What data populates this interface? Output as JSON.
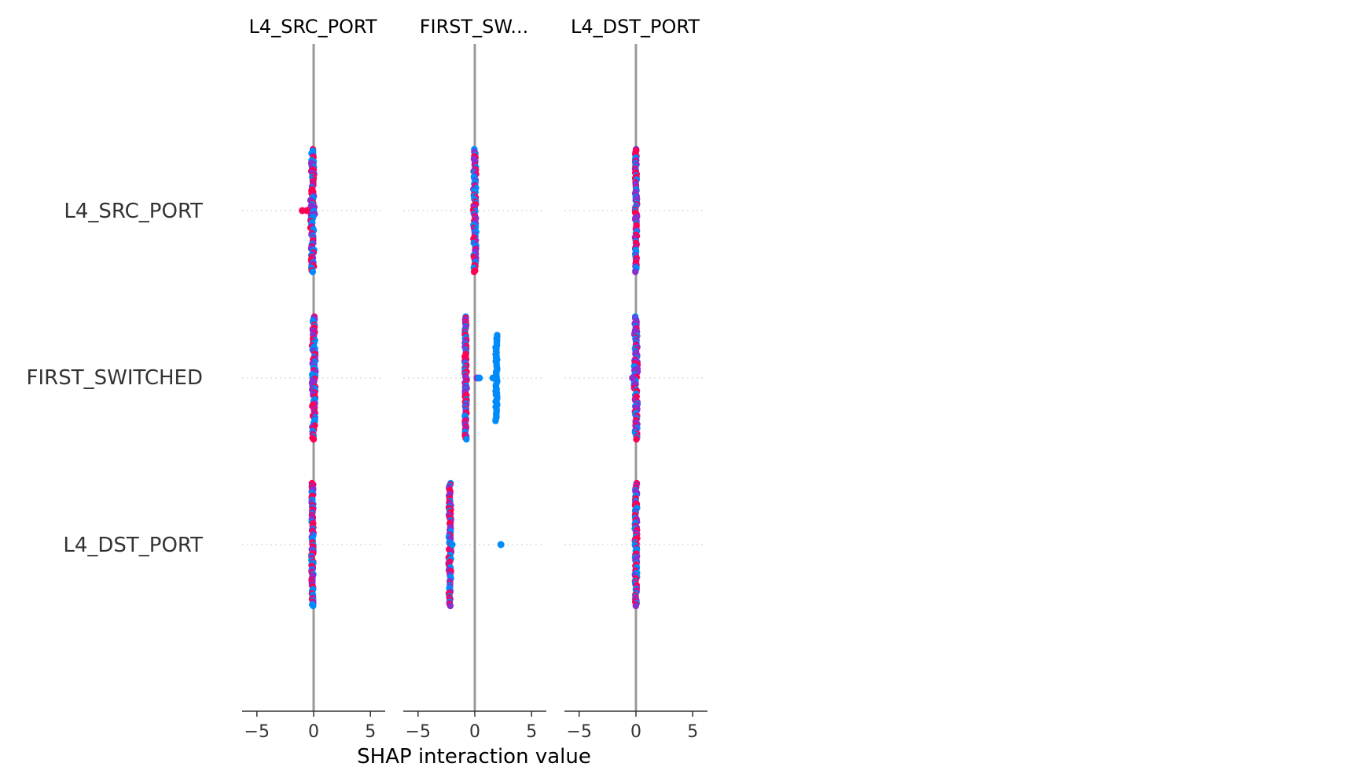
{
  "chart_data": {
    "type": "scatter",
    "subtype": "shap-interaction-beeswarm-matrix",
    "xlabel": "SHAP interaction value",
    "xlim": [
      -6.3,
      6.3
    ],
    "xticks": [
      -5,
      0,
      5
    ],
    "xtick_labels": [
      "−5",
      "0",
      "5"
    ],
    "column_titles": [
      "L4_SRC_PORT",
      "FIRST_SW...",
      "L4_DST_PORT"
    ],
    "row_labels": [
      "L4_SRC_PORT",
      "FIRST_SWITCHED",
      "L4_DST_PORT"
    ],
    "colors": {
      "high": "#ff0052",
      "mid": "#8a2ecc",
      "low": "#008bfb",
      "zero_line": "#999999",
      "grid": "#cccccc",
      "axis": "#333333"
    },
    "cells": [
      {
        "row": "L4_SRC_PORT",
        "col": "L4_SRC_PORT",
        "center": -0.1,
        "spread": 0.4,
        "extra": [
          {
            "x": -1.0,
            "c": "high"
          },
          {
            "x": -0.6,
            "c": "high"
          }
        ]
      },
      {
        "row": "L4_SRC_PORT",
        "col": "FIRST_SW...",
        "center": 0.0,
        "spread": 0.3,
        "extra": []
      },
      {
        "row": "L4_SRC_PORT",
        "col": "L4_DST_PORT",
        "center": 0.0,
        "spread": 0.2,
        "extra": []
      },
      {
        "row": "FIRST_SWITCHED",
        "col": "L4_SRC_PORT",
        "center": 0.0,
        "spread": 0.35,
        "extra": []
      },
      {
        "row": "FIRST_SWITCHED",
        "col": "FIRST_SW...",
        "center": -0.8,
        "spread": 0.2,
        "extra": [
          {
            "x": 0.2,
            "c": "mid"
          },
          {
            "x": 0.4,
            "c": "low"
          },
          {
            "x": 1.6,
            "c": "low"
          }
        ],
        "second_cluster": {
          "center": 1.9,
          "spread": 0.15,
          "color": "low",
          "y_range": [
            -0.7,
            0.7
          ]
        }
      },
      {
        "row": "FIRST_SWITCHED",
        "col": "L4_DST_PORT",
        "center": 0.0,
        "spread": 0.35,
        "extra": [
          {
            "x": -0.3,
            "c": "mid"
          }
        ]
      },
      {
        "row": "L4_DST_PORT",
        "col": "L4_SRC_PORT",
        "center": -0.1,
        "spread": 0.2,
        "extra": []
      },
      {
        "row": "L4_DST_PORT",
        "col": "FIRST_SW...",
        "center": -2.2,
        "spread": 0.25,
        "extra": [
          {
            "x": -2.0,
            "c": "low"
          },
          {
            "x": 2.3,
            "c": "low"
          }
        ]
      },
      {
        "row": "L4_DST_PORT",
        "col": "L4_DST_PORT",
        "center": 0.0,
        "spread": 0.25,
        "extra": []
      }
    ]
  }
}
